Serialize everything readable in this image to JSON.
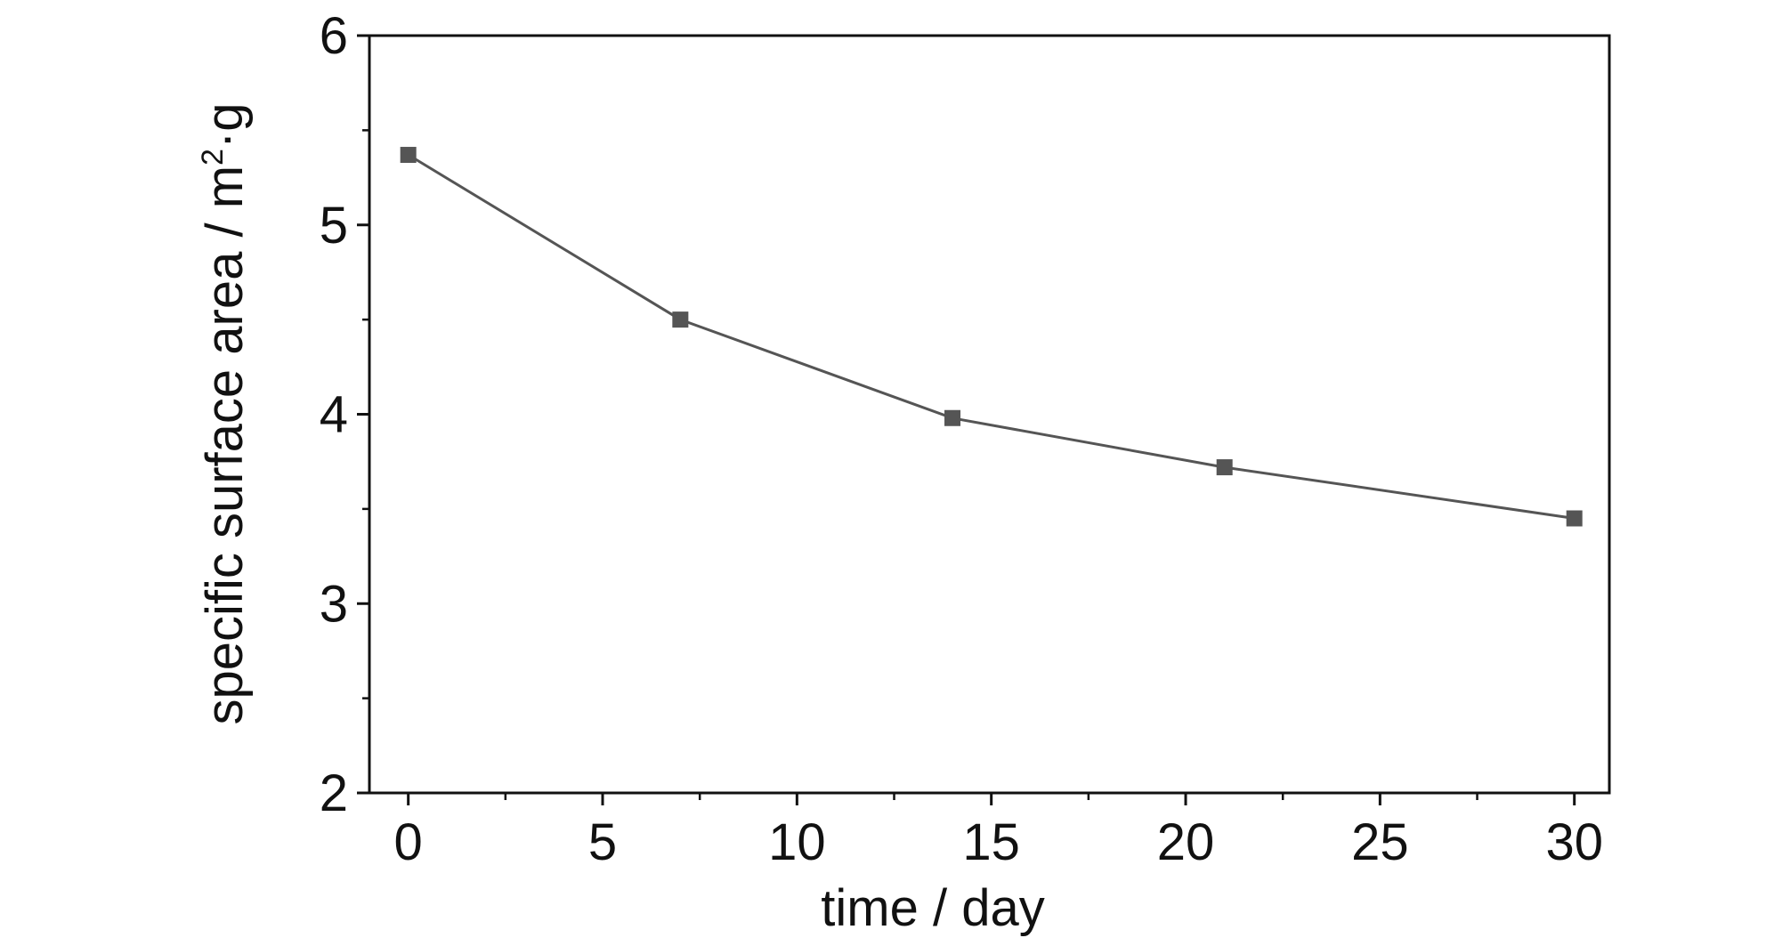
{
  "chart_data": {
    "type": "line",
    "title": "",
    "xlabel": "time / day",
    "ylabel": {
      "base": "specific surface area / m",
      "sup": "2",
      "tail": "·g"
    },
    "xlim": [
      -1,
      30.9
    ],
    "ylim": [
      2,
      6
    ],
    "xticks": [
      0,
      5,
      10,
      15,
      20,
      25,
      30
    ],
    "yticks": [
      2,
      3,
      4,
      5,
      6
    ],
    "xtick_labels": [
      "0",
      "5",
      "10",
      "15",
      "20",
      "25",
      "30"
    ],
    "ytick_labels": [
      "2",
      "3",
      "4",
      "5",
      "6"
    ],
    "grid": false,
    "legend": "none",
    "series": [
      {
        "marker": "square",
        "color": "#555555",
        "x": [
          0,
          7,
          14,
          21,
          30
        ],
        "y": [
          5.37,
          4.5,
          3.98,
          3.72,
          3.45
        ]
      }
    ]
  }
}
